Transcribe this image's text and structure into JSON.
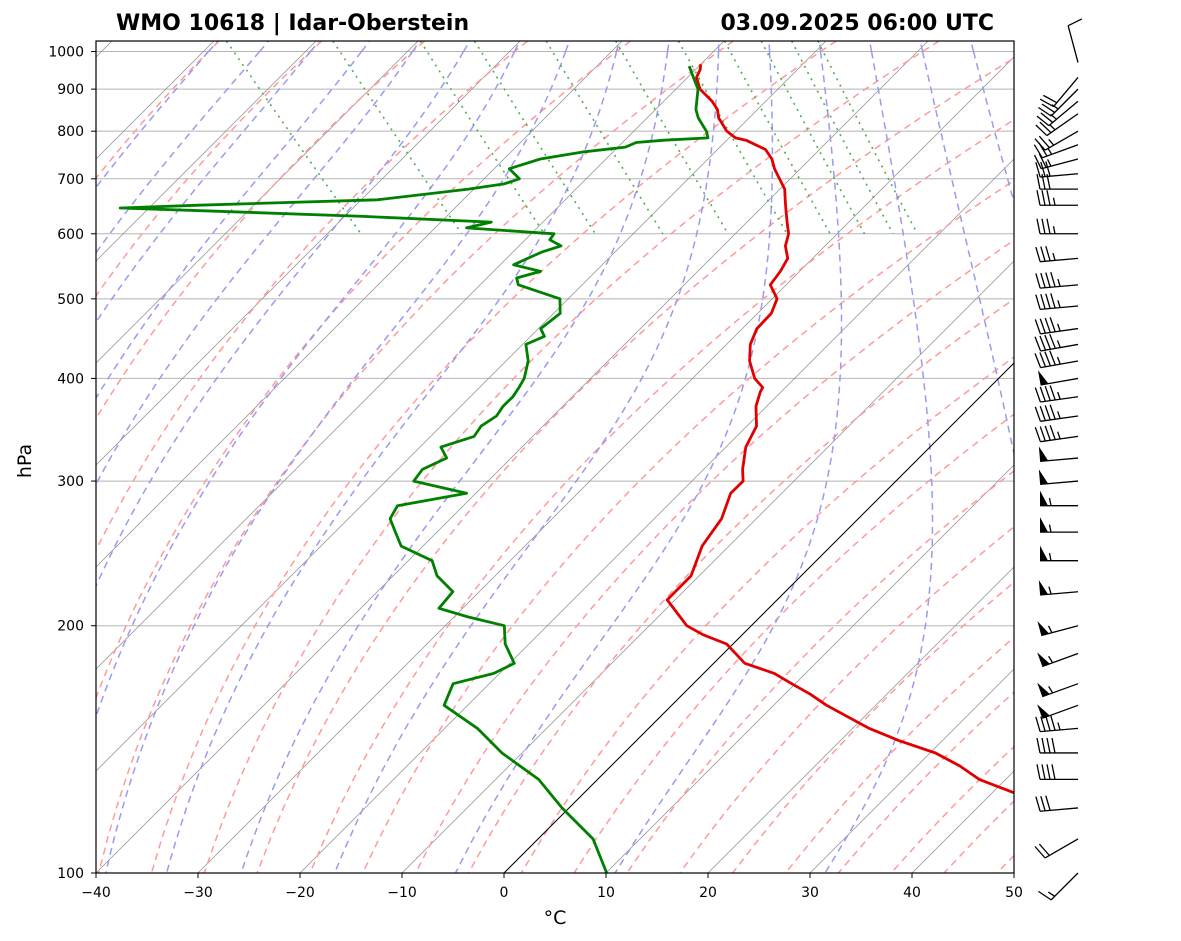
{
  "chart_data": {
    "type": "skew-t",
    "title_left": "WMO 10618 | Idar-Oberstein",
    "title_right": "03.09.2025 06:00 UTC",
    "xlabel": "°C",
    "ylabel": "hPa",
    "xlim": [
      -40,
      50
    ],
    "ylim": [
      1030,
      100
    ],
    "x_ticks": [
      -40,
      -30,
      -20,
      -10,
      0,
      10,
      20,
      30,
      40,
      50
    ],
    "x_tick_labels": [
      "−40",
      "−30",
      "−20",
      "−10",
      "0",
      "10",
      "20",
      "30",
      "40",
      "50"
    ],
    "y_ticks": [
      1000,
      900,
      800,
      700,
      600,
      500,
      400,
      300,
      200,
      100
    ],
    "y_tick_labels": [
      "1000",
      "900",
      "800",
      "700",
      "600",
      "500",
      "400",
      "300",
      "200",
      "100"
    ],
    "grid": true,
    "colors": {
      "temperature": "#e00000",
      "dewpoint": "#008000",
      "dry_adiabats": "#ff9a9a",
      "moist_adiabats": "#9a9aee",
      "mixing_ratio": "#4caf50",
      "isotherms": "#8c8c8c",
      "isobars": "#b5b5b5",
      "reference_isotherm": "#000000"
    },
    "series": [
      {
        "name": "temperature",
        "p": [
          965,
          950,
          930,
          900,
          870,
          850,
          830,
          800,
          785,
          780,
          760,
          740,
          720,
          700,
          680,
          660,
          640,
          620,
          600,
          580,
          560,
          540,
          520,
          500,
          480,
          460,
          440,
          420,
          400,
          390,
          385,
          370,
          350,
          330,
          310,
          300,
          290,
          270,
          250,
          230,
          215,
          205,
          200,
          195,
          190,
          180,
          175,
          170,
          165,
          160,
          150,
          145,
          140,
          135,
          130,
          125,
          120,
          115,
          110,
          105,
          100
        ],
        "t": [
          17.0,
          16.4,
          15.3,
          14.5,
          14.5,
          14.2,
          13.5,
          13.0,
          13.2,
          14.0,
          15.0,
          14.7,
          14.0,
          13.5,
          13.0,
          12.0,
          11.0,
          10.0,
          9.0,
          7.5,
          6.5,
          4.5,
          2.2,
          1.5,
          -0.5,
          -3.4,
          -5.6,
          -7.3,
          -8.5,
          -8.6,
          -9.3,
          -11.1,
          -13.0,
          -16.1,
          -18.6,
          -19.7,
          -22.1,
          -25.5,
          -30.1,
          -34.1,
          -38.8,
          -39.2,
          -39.4,
          -38.7,
          -37.3,
          -37.4,
          -35.5,
          -34.8,
          -34.0,
          -33.5,
          -31.6,
          -29.9,
          -27.5,
          -26.4,
          -25.8,
          -23.6,
          -21.9,
          -19.8,
          -18.4,
          -18.3,
          -16.4
        ]
      },
      {
        "name": "dewpoint",
        "p": [
          960,
          930,
          900,
          870,
          850,
          830,
          800,
          785,
          780,
          775,
          765,
          755,
          740,
          720,
          700,
          690,
          680,
          660,
          650,
          645,
          640,
          630,
          620,
          610,
          600,
          590,
          580,
          570,
          560,
          550,
          540,
          530,
          520,
          500,
          480,
          460,
          450,
          440,
          420,
          400,
          390,
          380,
          370,
          360,
          350,
          340,
          330,
          320,
          310,
          300,
          290,
          280,
          270,
          260,
          250,
          240,
          230,
          220,
          210,
          205,
          200,
          190,
          180,
          175,
          170,
          160,
          150,
          140,
          130,
          120,
          110,
          100
        ],
        "t": [
          15.7,
          15.0,
          14.3,
          13.0,
          12.1,
          11.5,
          11.0,
          10.5,
          6.0,
          3.0,
          1.5,
          -3.0,
          -8.0,
          -12.0,
          -12.0,
          -14.0,
          -18.0,
          -28.0,
          -46.0,
          -54.0,
          -46.0,
          -31.0,
          -19.0,
          -22.0,
          -14.0,
          -15.0,
          -14.5,
          -17.0,
          -19.0,
          -21.0,
          -19.0,
          -22.0,
          -22.5,
          -19.8,
          -21.2,
          -24.6,
          -25.0,
          -27.6,
          -29.0,
          -31.1,
          -32.5,
          -34.0,
          -35.9,
          -37.5,
          -40.0,
          -41.7,
          -46.0,
          -46.5,
          -50.0,
          -52.0,
          -48.0,
          -56.0,
          -58.0,
          -58.8,
          -59.6,
          -58.0,
          -59.0,
          -59.0,
          -62.0,
          -60.0,
          -57.3,
          -59.0,
          -60.0,
          -63.0,
          -68.0,
          -71.0,
          -70.0,
          -70.0,
          -69.0,
          -69.5,
          -69.5,
          -71.5
        ]
      }
    ],
    "wind_barbs": {
      "p": [
        970,
        930,
        900,
        870,
        840,
        800,
        770,
        740,
        710,
        680,
        650,
        600,
        560,
        520,
        490,
        460,
        440,
        420,
        400,
        380,
        360,
        340,
        320,
        300,
        280,
        260,
        240,
        220,
        200,
        185,
        170,
        160,
        150,
        140,
        130,
        120,
        110,
        100
      ],
      "dir": [
        345,
        220,
        225,
        230,
        235,
        240,
        250,
        255,
        265,
        270,
        270,
        270,
        265,
        265,
        265,
        262,
        260,
        260,
        260,
        262,
        262,
        262,
        265,
        265,
        270,
        270,
        270,
        265,
        255,
        250,
        250,
        250,
        265,
        270,
        270,
        265,
        240,
        225
      ],
      "speed": [
        10,
        20,
        25,
        25,
        25,
        25,
        25,
        25,
        30,
        30,
        35,
        35,
        35,
        45,
        45,
        45,
        45,
        45,
        50,
        45,
        45,
        45,
        50,
        50,
        55,
        55,
        55,
        55,
        55,
        55,
        55,
        50,
        45,
        40,
        40,
        30,
        20,
        15
      ]
    }
  }
}
